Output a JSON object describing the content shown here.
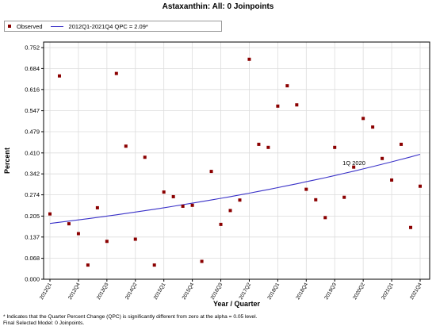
{
  "title": "Astaxanthin: All: 0 Joinpoints",
  "legend": {
    "observed": "Observed",
    "fit": "2012Q1-2021Q4 QPC = 2.09*"
  },
  "colors": {
    "observed": "#8b0000",
    "fit": "#3a32c8",
    "grid": "#dcdcdc"
  },
  "annotation": "1Q 2020",
  "footnotes": {
    "line1": "* Indicates that the Quarter Percent Change (QPC) is significantly different from zero at the alpha = 0.05 level.",
    "line2": "Final Selected Model: 0 Joinpoints."
  },
  "chart_data": {
    "type": "scatter",
    "title": "Astaxanthin: All: 0 Joinpoints",
    "xlabel": "Year / Quarter",
    "ylabel": "Percent",
    "ylim": [
      0,
      0.77
    ],
    "yticks": [
      "0.000",
      "0.068",
      "0.137",
      "0.205",
      "0.274",
      "0.342",
      "0.410",
      "0.479",
      "0.547",
      "0.616",
      "0.684",
      "0.752"
    ],
    "xticks": [
      "2012Q1",
      "2012Q4",
      "2013Q3",
      "2014Q2",
      "2015Q1",
      "2015Q4",
      "2016Q3",
      "2017Q2",
      "2018Q1",
      "2018Q4",
      "2019Q3",
      "2020Q2",
      "2021Q1",
      "2021Q4"
    ],
    "grid": true,
    "legend_position": "top-left",
    "quarters": [
      "2012Q1",
      "2012Q2",
      "2012Q3",
      "2012Q4",
      "2013Q1",
      "2013Q2",
      "2013Q3",
      "2013Q4",
      "2014Q1",
      "2014Q2",
      "2014Q3",
      "2014Q4",
      "2015Q1",
      "2015Q2",
      "2015Q3",
      "2015Q4",
      "2016Q1",
      "2016Q2",
      "2016Q3",
      "2016Q4",
      "2017Q1",
      "2017Q2",
      "2017Q3",
      "2017Q4",
      "2018Q1",
      "2018Q2",
      "2018Q3",
      "2018Q4",
      "2019Q1",
      "2019Q2",
      "2019Q3",
      "2019Q4",
      "2020Q1",
      "2020Q2",
      "2020Q3",
      "2020Q4",
      "2021Q1",
      "2021Q2",
      "2021Q3",
      "2021Q4"
    ],
    "series": [
      {
        "name": "Observed",
        "values": [
          0.212,
          0.66,
          0.18,
          0.148,
          0.046,
          0.232,
          0.123,
          0.668,
          0.432,
          0.13,
          0.396,
          0.046,
          0.283,
          0.268,
          0.237,
          0.24,
          0.058,
          0.35,
          0.178,
          0.223,
          0.257,
          0.714,
          0.438,
          0.428,
          0.562,
          0.628,
          0.566,
          0.292,
          0.258,
          0.2,
          0.428,
          0.266,
          0.364,
          0.522,
          0.494,
          0.392,
          0.322,
          0.438,
          0.168,
          0.302
        ]
      },
      {
        "name": "2012Q1-2021Q4 QPC = 2.09*",
        "start": 0.181,
        "qpc": 2.09
      }
    ]
  }
}
